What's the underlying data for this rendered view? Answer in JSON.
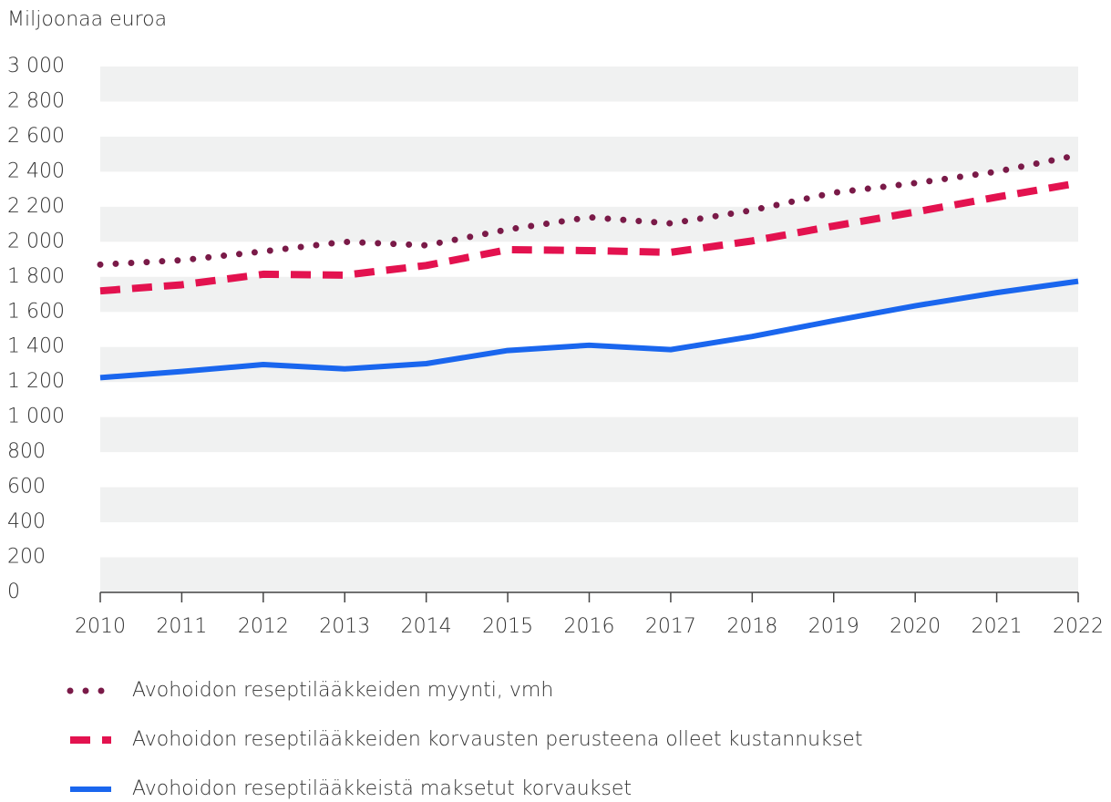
{
  "chart_data": {
    "type": "line",
    "y_axis_label": "Miljoonaa euroa",
    "categories": [
      "2010",
      "2011",
      "2012",
      "2013",
      "2014",
      "2015",
      "2016",
      "2017",
      "2018",
      "2019",
      "2020",
      "2021",
      "2022"
    ],
    "series": [
      {
        "name": "Avohoidon reseptilääkkeiden myynti, vmh",
        "color": "#7a1a48",
        "style": "dotted",
        "values": [
          1870,
          1895,
          1945,
          2000,
          1980,
          2070,
          2140,
          2105,
          2180,
          2280,
          2335,
          2400,
          2495
        ]
      },
      {
        "name": "Avohoidon reseptilääkkeiden korvausten perusteena olleet kustannukset",
        "color": "#e3124f",
        "style": "dashed",
        "values": [
          1720,
          1755,
          1815,
          1810,
          1865,
          1955,
          1950,
          1940,
          2005,
          2090,
          2170,
          2255,
          2335
        ]
      },
      {
        "name": "Avohoidon reseptilääkkeistä maksetut korvaukset",
        "color": "#1a66ee",
        "style": "solid",
        "values": [
          1225,
          1260,
          1300,
          1275,
          1305,
          1380,
          1410,
          1385,
          1460,
          1550,
          1635,
          1710,
          1775
        ]
      }
    ],
    "ylim": [
      0,
      3000
    ],
    "yticks": [
      0,
      200,
      400,
      600,
      800,
      {
        "value": 1000,
        "label": "1 000"
      },
      {
        "value": 1200,
        "label": "1 200"
      },
      {
        "value": 1400,
        "label": "1 400"
      },
      {
        "value": 1600,
        "label": "1 600"
      },
      {
        "value": 1800,
        "label": "1 800"
      },
      {
        "value": 2000,
        "label": "2 000"
      },
      {
        "value": 2200,
        "label": "2 200"
      },
      {
        "value": 2400,
        "label": "2 400"
      },
      {
        "value": 2600,
        "label": "2 600"
      },
      {
        "value": 2800,
        "label": "2 800"
      },
      {
        "value": 3000,
        "label": "3 000"
      }
    ],
    "grid": "bands",
    "legend": "bottom"
  }
}
